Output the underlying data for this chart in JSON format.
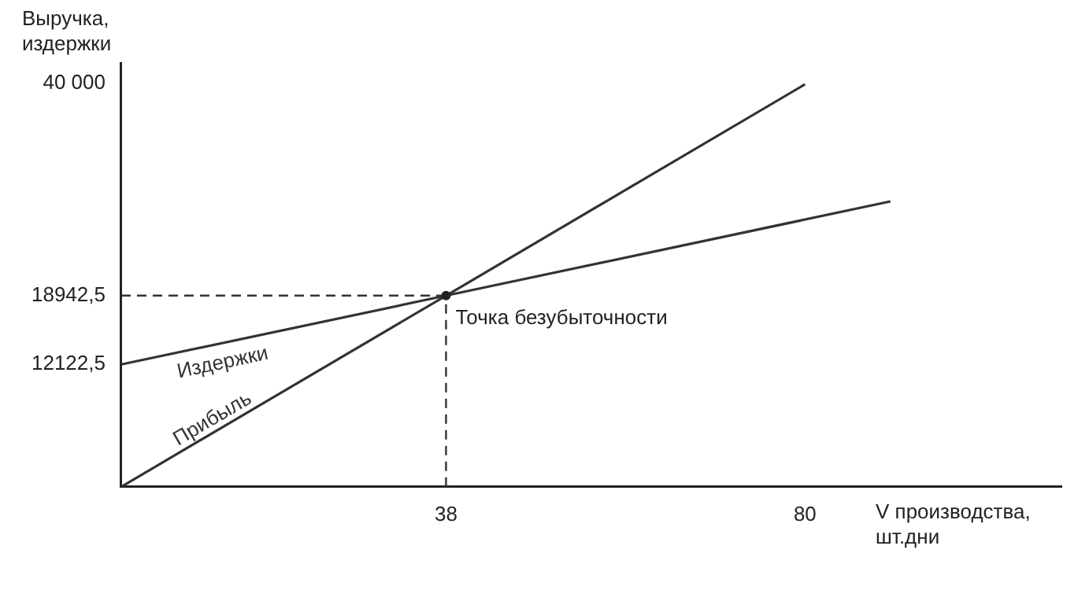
{
  "chart_data": {
    "type": "line",
    "xlabel": "V производства, шт.дни",
    "ylabel": "Выручка, издержки",
    "xlim": [
      0,
      110
    ],
    "ylim": [
      0,
      42000
    ],
    "xticks": [
      38,
      80
    ],
    "yticks": [
      {
        "value": 12122.5,
        "label": "12122,5"
      },
      {
        "value": 18942.5,
        "label": "18942,5"
      },
      {
        "value": 40000,
        "label": "40 000"
      }
    ],
    "series": [
      {
        "name": "Издержки",
        "color": "#333333",
        "x": [
          0,
          38,
          90
        ],
        "values": [
          12122.5,
          18942.5,
          28277.5
        ]
      },
      {
        "name": "Прибыль",
        "color": "#333333",
        "x": [
          0,
          38,
          80
        ],
        "values": [
          0,
          18942.5,
          39880
        ]
      }
    ],
    "ref_lines": [
      {
        "axis": "x",
        "value": 38,
        "line_style": "dashed",
        "color": "#333333"
      },
      {
        "axis": "y",
        "value": 18942.5,
        "line_style": "dashed",
        "color": "#333333"
      }
    ],
    "annotations": [
      {
        "text": "Точка безубыточности",
        "x": 38,
        "y": 18942.5
      }
    ],
    "grid": false,
    "legend": false,
    "marker": "none",
    "line_style": "solid"
  }
}
